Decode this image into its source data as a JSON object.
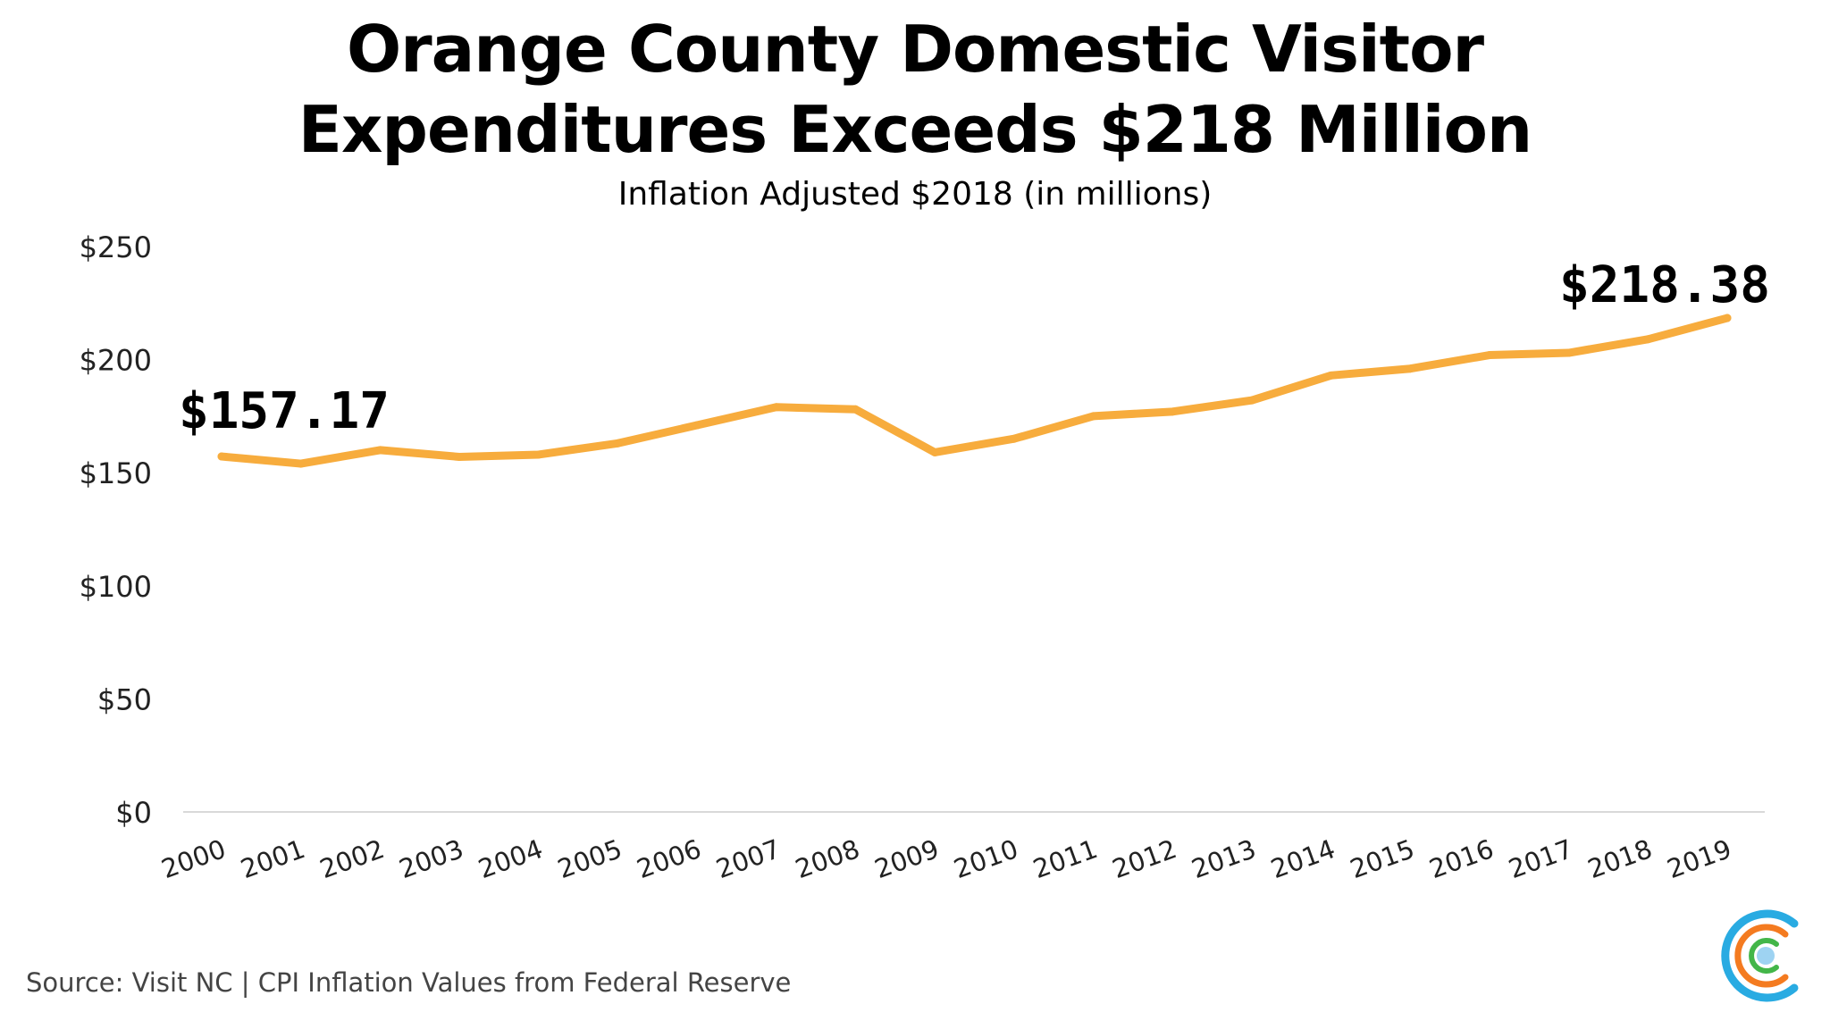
{
  "title_lines": [
    "Orange County Domestic Visitor",
    "Expenditures Exceeds $218 Million"
  ],
  "subtitle": "Inflation Adjusted $2018 (in millions)",
  "source": "Source: Visit NC | CPI Inflation Values from Federal Reserve",
  "colors": {
    "line": "#F7AC3D",
    "axis": "#D9D9D9",
    "logo_blue": "#29ABE2",
    "logo_orange": "#F47B20",
    "logo_green": "#43B649",
    "logo_dot": "#9ED3F2"
  },
  "logo": "circular-c-logo",
  "chart_data": {
    "type": "line",
    "categories": [
      "2000",
      "2001",
      "2002",
      "2003",
      "2004",
      "2005",
      "2006",
      "2007",
      "2008",
      "2009",
      "2010",
      "2011",
      "2012",
      "2013",
      "2014",
      "2015",
      "2016",
      "2017",
      "2018",
      "2019"
    ],
    "values": [
      157.17,
      154,
      160,
      157,
      158,
      163,
      171,
      179,
      178,
      159,
      165,
      175,
      177,
      182,
      193,
      196,
      202,
      203,
      209,
      218.38
    ],
    "ylim": [
      0,
      250
    ],
    "yticks": [
      0,
      50,
      100,
      150,
      200,
      250
    ],
    "ytick_labels": [
      "$0",
      "$50",
      "$100",
      "$150",
      "$200",
      "$250"
    ],
    "annotations": [
      {
        "index": 0,
        "text": "$157.17"
      },
      {
        "index": 19,
        "text": "$218.38"
      }
    ],
    "grid": false,
    "legend": "none"
  }
}
